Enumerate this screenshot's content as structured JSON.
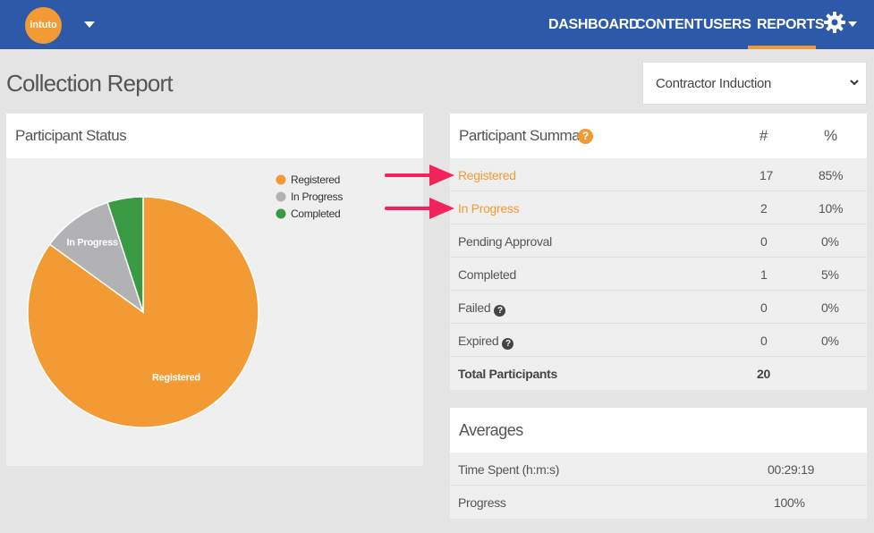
{
  "nav": {
    "logo_text": "intuto",
    "items": [
      "DASHBOARD",
      "CONTENT",
      "USERS",
      "REPORTS"
    ],
    "active": "REPORTS",
    "accent_color": "#f29a34",
    "bar_color": "#2d5aa8"
  },
  "page": {
    "title": "Collection Report"
  },
  "collection_select": {
    "value": "Contractor Induction"
  },
  "status_panel": {
    "title": "Participant Status",
    "chart_data": {
      "type": "pie",
      "categories": [
        "Registered",
        "In Progress",
        "Completed"
      ],
      "values": [
        17,
        2,
        1
      ],
      "colors": [
        "#f29a34",
        "#b2b2b4",
        "#3a9a44"
      ],
      "slice_labels": [
        "Registered",
        "In Progress",
        ""
      ],
      "legend": [
        "Registered",
        "In Progress",
        "Completed"
      ],
      "legend_position": "top-right"
    }
  },
  "summary": {
    "title": "Participant Summary",
    "col_count": "#",
    "col_pct": "%",
    "rows": [
      {
        "label": "Registered",
        "count": "17",
        "pct": "85%"
      },
      {
        "label": "In Progress",
        "count": "2",
        "pct": "10%"
      },
      {
        "label": "Pending Approval",
        "count": "0",
        "pct": "0%"
      },
      {
        "label": "Completed",
        "count": "1",
        "pct": "5%"
      },
      {
        "label": "Failed",
        "count": "0",
        "pct": "0%"
      },
      {
        "label": "Expired",
        "count": "0",
        "pct": "0%"
      }
    ],
    "total_label": "Total Participants",
    "total_count": "20",
    "help_icon_glyph": "?"
  },
  "averages": {
    "title": "Averages",
    "rows": [
      {
        "label": "Time Spent (h:m:s)",
        "value": "00:29:19"
      },
      {
        "label": "Progress",
        "value": "100%"
      }
    ]
  },
  "annotation_arrow_color": "#f0245a"
}
